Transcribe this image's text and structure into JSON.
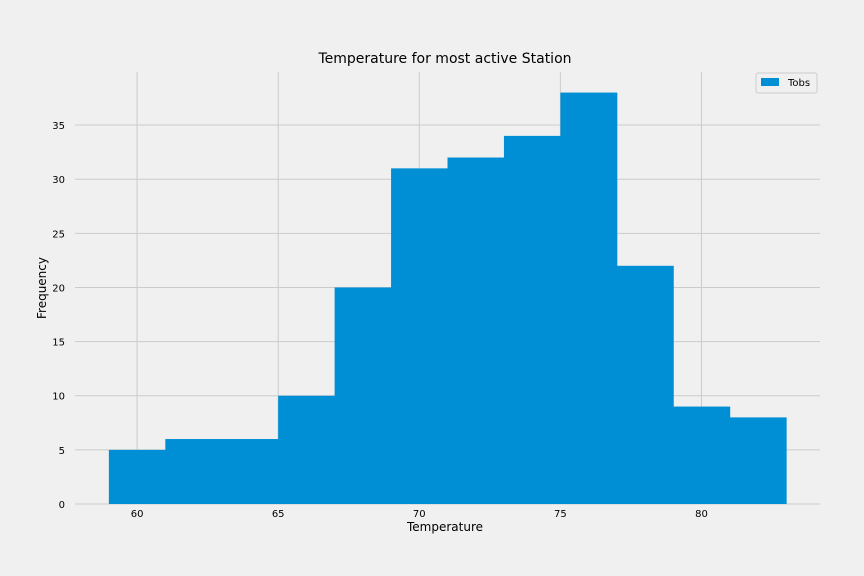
{
  "chart_data": {
    "type": "bar",
    "title": "Temperature for most active Station",
    "xlabel": "Temperature",
    "ylabel": "Frequency",
    "xlim": [
      57.8,
      84.2
    ],
    "ylim": [
      0,
      39.9
    ],
    "x_ticks": [
      60,
      65,
      70,
      75,
      80
    ],
    "y_ticks": [
      0,
      5,
      10,
      15,
      20,
      25,
      30,
      35
    ],
    "grid": true,
    "legend_position": "top-right",
    "color": "#008fd5",
    "series": [
      {
        "name": "Tobs",
        "bins": [
          {
            "x0": 59,
            "x1": 61,
            "count": 5
          },
          {
            "x0": 61,
            "x1": 63,
            "count": 6
          },
          {
            "x0": 63,
            "x1": 65,
            "count": 6
          },
          {
            "x0": 65,
            "x1": 67,
            "count": 10
          },
          {
            "x0": 67,
            "x1": 69,
            "count": 20
          },
          {
            "x0": 69,
            "x1": 71,
            "count": 31
          },
          {
            "x0": 71,
            "x1": 73,
            "count": 32
          },
          {
            "x0": 73,
            "x1": 75,
            "count": 34
          },
          {
            "x0": 75,
            "x1": 77,
            "count": 38
          },
          {
            "x0": 77,
            "x1": 79,
            "count": 22
          },
          {
            "x0": 79,
            "x1": 81,
            "count": 9
          },
          {
            "x0": 81,
            "x1": 83,
            "count": 8
          }
        ]
      }
    ]
  }
}
